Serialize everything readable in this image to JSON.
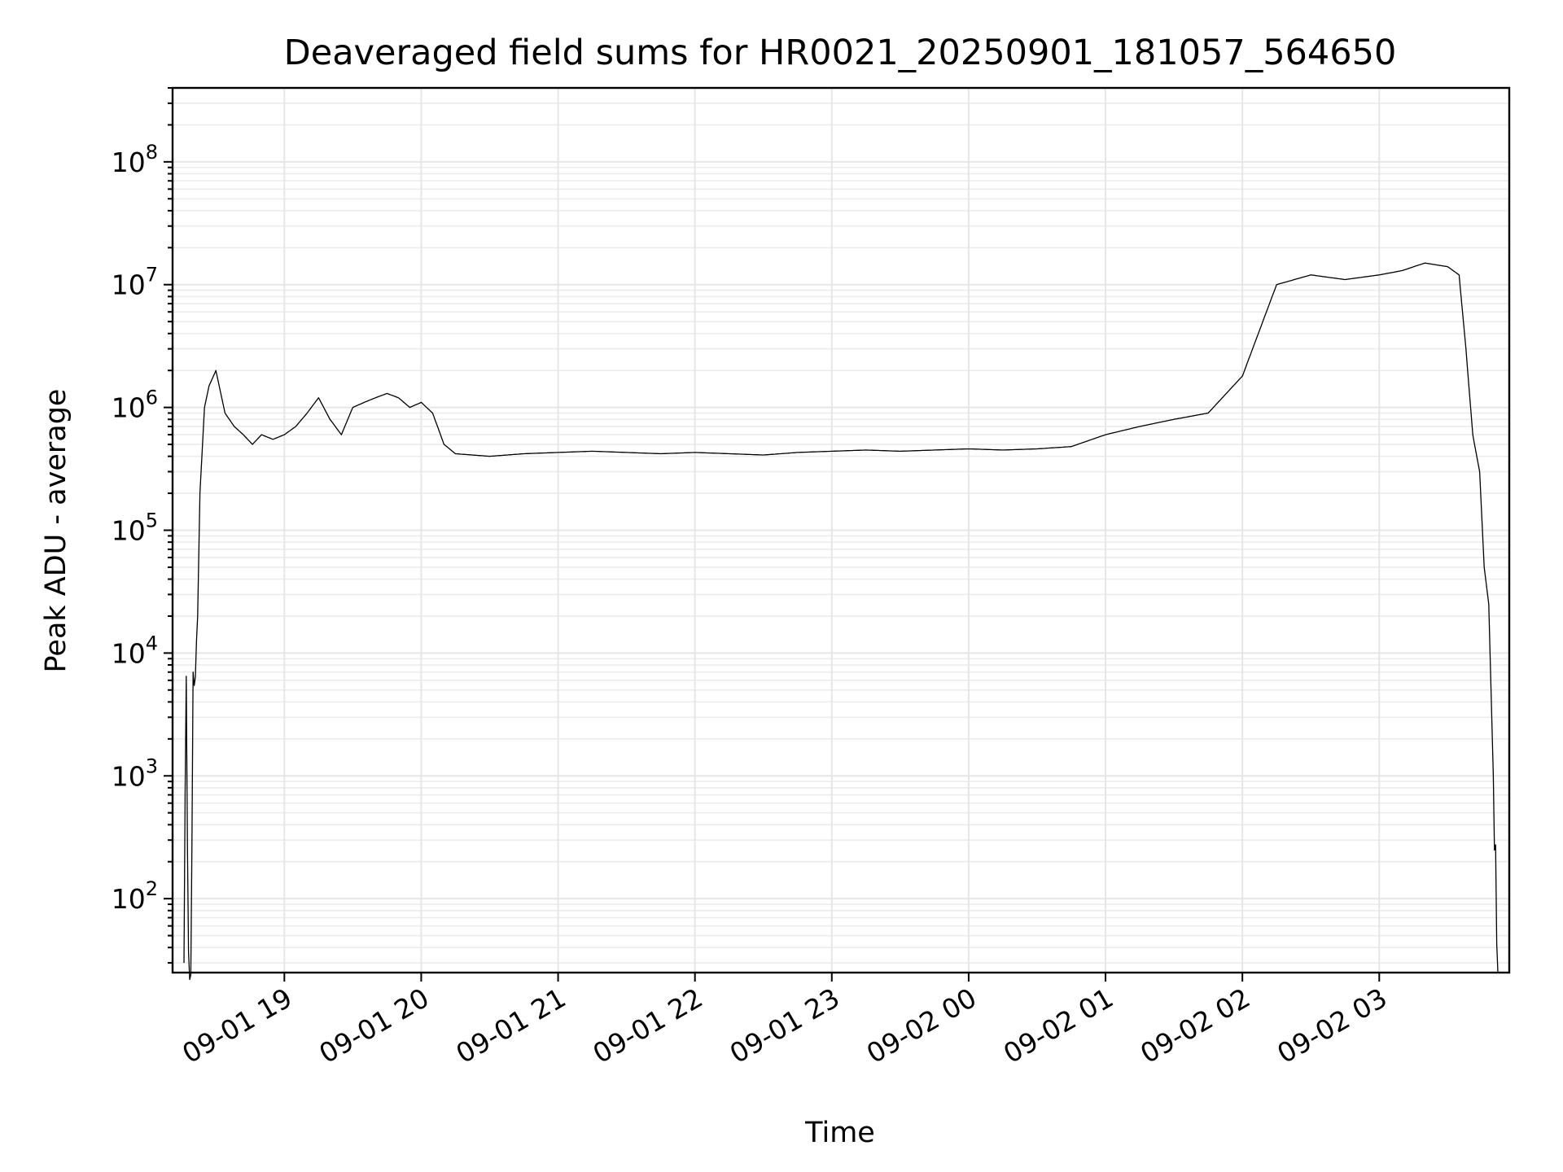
{
  "chart_data": {
    "type": "line",
    "title": "Deaveraged field sums for HR0021_20250901_181057_564650",
    "xlabel": "Time",
    "ylabel": "Peak ADU - average",
    "yscale": "log",
    "ylim": [
      25,
      400000000
    ],
    "xlim": [
      "2025-09-01 18:11",
      "2025-09-02 03:57"
    ],
    "grid": true,
    "x_ticks": [
      {
        "value": "2025-09-01 19:00",
        "label": "09-01 19"
      },
      {
        "value": "2025-09-01 20:00",
        "label": "09-01 20"
      },
      {
        "value": "2025-09-01 21:00",
        "label": "09-01 21"
      },
      {
        "value": "2025-09-01 22:00",
        "label": "09-01 22"
      },
      {
        "value": "2025-09-01 23:00",
        "label": "09-01 23"
      },
      {
        "value": "2025-09-02 00:00",
        "label": "09-02 00"
      },
      {
        "value": "2025-09-02 01:00",
        "label": "09-02 01"
      },
      {
        "value": "2025-09-02 02:00",
        "label": "09-02 02"
      },
      {
        "value": "2025-09-02 03:00",
        "label": "09-02 03"
      }
    ],
    "y_ticks": [
      {
        "value": 100,
        "base": "10",
        "exp": "2"
      },
      {
        "value": 1000,
        "base": "10",
        "exp": "3"
      },
      {
        "value": 10000,
        "base": "10",
        "exp": "4"
      },
      {
        "value": 100000,
        "base": "10",
        "exp": "5"
      },
      {
        "value": 1000000,
        "base": "10",
        "exp": "6"
      },
      {
        "value": 10000000,
        "base": "10",
        "exp": "7"
      },
      {
        "value": 100000000,
        "base": "10",
        "exp": "8"
      }
    ],
    "series": [
      {
        "color": "#000000",
        "x": [
          "2025-09-01 18:16",
          "2025-09-01 18:17",
          "2025-09-01 18:18",
          "2025-09-01 18:19",
          "2025-09-01 18:20",
          "2025-09-01 18:21",
          "2025-09-01 18:22",
          "2025-09-01 18:23",
          "2025-09-01 18:25",
          "2025-09-01 18:27",
          "2025-09-01 18:30",
          "2025-09-01 18:34",
          "2025-09-01 18:38",
          "2025-09-01 18:42",
          "2025-09-01 18:46",
          "2025-09-01 18:50",
          "2025-09-01 18:55",
          "2025-09-01 19:00",
          "2025-09-01 19:05",
          "2025-09-01 19:10",
          "2025-09-01 19:15",
          "2025-09-01 19:20",
          "2025-09-01 19:25",
          "2025-09-01 19:30",
          "2025-09-01 19:35",
          "2025-09-01 19:40",
          "2025-09-01 19:45",
          "2025-09-01 19:50",
          "2025-09-01 19:55",
          "2025-09-01 20:00",
          "2025-09-01 20:05",
          "2025-09-01 20:10",
          "2025-09-01 20:15",
          "2025-09-01 20:30",
          "2025-09-01 20:45",
          "2025-09-01 21:00",
          "2025-09-01 21:15",
          "2025-09-01 21:30",
          "2025-09-01 21:45",
          "2025-09-01 22:00",
          "2025-09-01 22:15",
          "2025-09-01 22:30",
          "2025-09-01 22:45",
          "2025-09-01 23:00",
          "2025-09-01 23:15",
          "2025-09-01 23:30",
          "2025-09-01 23:45",
          "2025-09-02 00:00",
          "2025-09-02 00:15",
          "2025-09-02 00:30",
          "2025-09-02 00:45",
          "2025-09-02 01:00",
          "2025-09-02 01:15",
          "2025-09-02 01:30",
          "2025-09-02 01:45",
          "2025-09-02 02:00",
          "2025-09-02 02:15",
          "2025-09-02 02:30",
          "2025-09-02 02:45",
          "2025-09-02 03:00",
          "2025-09-02 03:10",
          "2025-09-02 03:20",
          "2025-09-02 03:30",
          "2025-09-02 03:35",
          "2025-09-02 03:38",
          "2025-09-02 03:41",
          "2025-09-02 03:44",
          "2025-09-02 03:46",
          "2025-09-02 03:48",
          "2025-09-02 03:50",
          "2025-09-02 03:52"
        ],
        "y": [
          30,
          5000,
          30,
          30,
          6000,
          8000,
          20000,
          200000,
          1000000,
          1500000,
          2000000,
          900000,
          700000,
          600000,
          500000,
          600000,
          550000,
          600000,
          700000,
          900000,
          1200000,
          800000,
          600000,
          1000000,
          1100000,
          1200000,
          1300000,
          1200000,
          1000000,
          1100000,
          900000,
          500000,
          420000,
          400000,
          420000,
          430000,
          440000,
          430000,
          420000,
          430000,
          420000,
          410000,
          430000,
          440000,
          450000,
          440000,
          450000,
          460000,
          450000,
          460000,
          480000,
          600000,
          700000,
          800000,
          900000,
          1800000,
          10000000,
          12000000,
          11000000,
          12000000,
          13000000,
          15000000,
          14000000,
          12000000,
          3000000,
          600000,
          300000,
          50000,
          25000,
          1000,
          30
        ]
      }
    ]
  }
}
